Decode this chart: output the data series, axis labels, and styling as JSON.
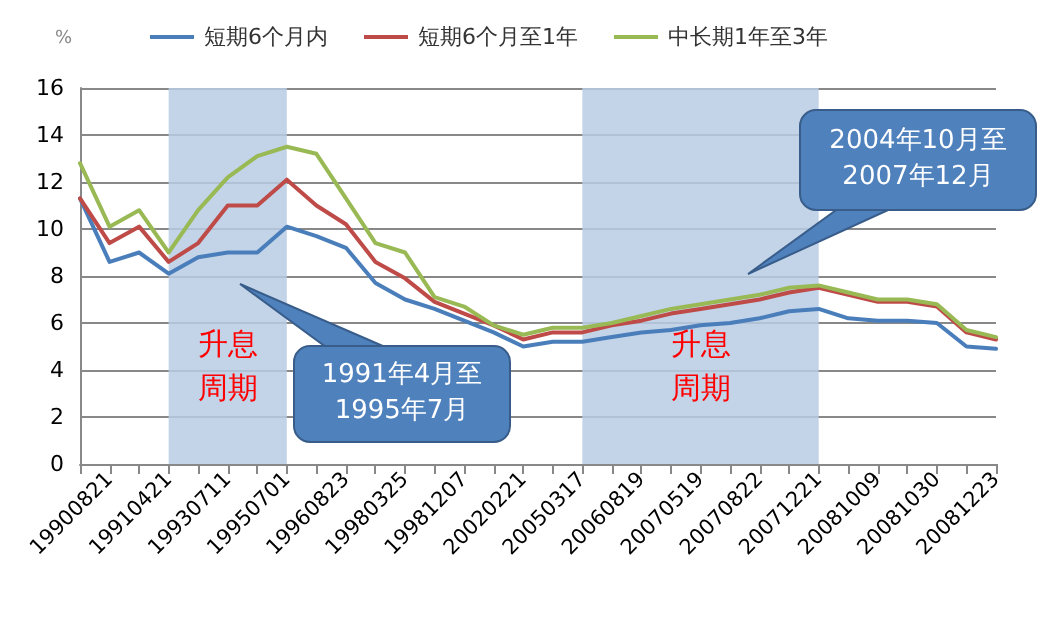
{
  "chart_data": {
    "type": "line",
    "ylabel": "%",
    "legend": "top",
    "grid": "y",
    "marker": "none",
    "line_style": "solid",
    "categories": [
      null,
      "19900821",
      null,
      "19910421",
      null,
      "19930711",
      null,
      "19950701",
      null,
      "19960823",
      null,
      "19980325",
      null,
      "19981207",
      null,
      "20020221",
      null,
      "20050317",
      null,
      "20060819",
      null,
      "20070519",
      null,
      "20070822",
      null,
      "20071221",
      null,
      "20081009",
      null,
      "20081030",
      null,
      "20081223"
    ],
    "ylim": [
      0,
      16
    ],
    "yticks": [
      0,
      2,
      4,
      6,
      8,
      10,
      12,
      14,
      16
    ],
    "series": [
      {
        "name": "短期6个月内",
        "color": "#4a7ebb",
        "values": [
          11.3,
          8.6,
          9.0,
          8.1,
          8.8,
          9.0,
          9.0,
          10.1,
          9.7,
          9.2,
          7.7,
          7.0,
          6.6,
          6.1,
          5.6,
          5.0,
          5.2,
          5.2,
          5.4,
          5.6,
          5.7,
          5.9,
          6.0,
          6.2,
          6.5,
          6.6,
          6.2,
          6.1,
          6.1,
          6.0,
          5.0,
          4.9
        ]
      },
      {
        "name": "短期6个月至1年",
        "color": "#be4b48",
        "values": [
          11.3,
          9.4,
          10.1,
          8.6,
          9.4,
          11.0,
          11.0,
          12.1,
          11.0,
          10.2,
          8.6,
          7.9,
          6.9,
          6.4,
          5.9,
          5.3,
          5.6,
          5.6,
          5.9,
          6.1,
          6.4,
          6.6,
          6.8,
          7.0,
          7.3,
          7.5,
          7.2,
          6.9,
          6.9,
          6.7,
          5.6,
          5.3
        ]
      },
      {
        "name": "中长期1年至3年",
        "color": "#98b954",
        "values": [
          12.8,
          10.1,
          10.8,
          9.0,
          10.8,
          12.2,
          13.1,
          13.5,
          13.2,
          11.3,
          9.4,
          9.0,
          7.1,
          6.7,
          5.9,
          5.5,
          5.8,
          5.8,
          6.0,
          6.3,
          6.6,
          6.8,
          7.0,
          7.2,
          7.5,
          7.6,
          7.3,
          7.0,
          7.0,
          6.8,
          5.7,
          5.4
        ]
      }
    ],
    "bands": [
      {
        "axis": "x",
        "from": "19910421",
        "to": "19950701",
        "label": "升息周期",
        "color": "#b8cce4"
      },
      {
        "axis": "x",
        "from": "20050317",
        "to": "20071221",
        "label": "升息周期",
        "color": "#b8cce4"
      }
    ],
    "annotations": [
      "1991年4月至1995年7月",
      "2004年10月至2007年12月"
    ]
  }
}
